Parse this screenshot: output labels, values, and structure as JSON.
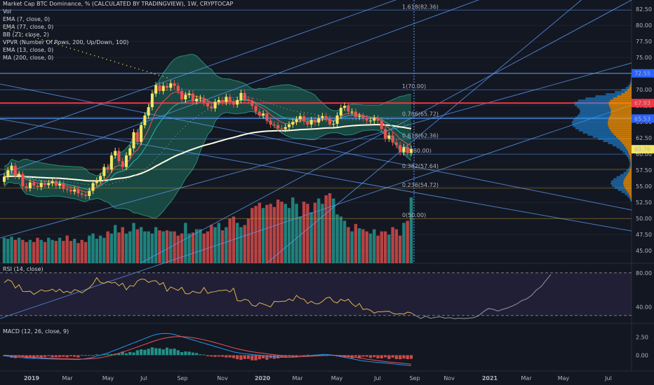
{
  "legend": {
    "title": "Market Cap BTC Dominance, % (CALCULATED BY TRADINGVIEW), 1W, CRYPTOCAP",
    "indicators": [
      "Vol",
      "EMA (7, close, 0)",
      "EMA (77, close, 0)",
      "BB (21, close, 2)",
      "VPVR (Number Of Rows, 200, Up/Down, 100)",
      "EMA (13, close, 0)",
      "MA (200, close, 0)"
    ]
  },
  "rsi_label": "RSI (14, close)",
  "macd_label": "MACD (12, 26, close, 9)",
  "colors": {
    "background": "#131722",
    "up": "#f5e663",
    "down": "#ef5350",
    "vol_up": "#26a69a",
    "vol_down": "#ef5350",
    "fib_line": "#5b9cf6",
    "red_line": "#f23645",
    "ema_white": "#fffde7",
    "ema_green": "#26a69a",
    "ema_red": "#ef5350",
    "bb_fill": "#1f6f5c",
    "vpvr_up": "#2196f3",
    "vpvr_down": "#ff9800",
    "rsi": "#e0b34a",
    "macd": "#2196f3",
    "signal": "#ef5350"
  },
  "chart_data": {
    "type": "candlestick",
    "x_ticks": [
      "2019",
      "Mar",
      "May",
      "Jul",
      "Sep",
      "Nov",
      "2020",
      "Mar",
      "May",
      "Jul",
      "Sep",
      "Nov",
      "2021",
      "Mar",
      "May",
      "Jul"
    ],
    "price_ticks": [
      "82.50",
      "80.00",
      "77.50",
      "75.00",
      "72.50",
      "70.00",
      "67.50",
      "65.00",
      "62.50",
      "60.00",
      "57.50",
      "55.00",
      "52.50",
      "50.00",
      "47.50",
      "45.00"
    ],
    "price_ylim": [
      43.5,
      83.5
    ],
    "price_badges": [
      {
        "text": "72.55",
        "value": 72.55,
        "color": "#2962ff"
      },
      {
        "text": "67.93",
        "value": 67.93,
        "color": "#f23645"
      },
      {
        "text": "65.53",
        "value": 65.53,
        "color": "#2962ff"
      },
      {
        "text": "60.76",
        "value": 60.76,
        "color": "#f5e663"
      }
    ],
    "fib_levels": [
      {
        "label": "1.618(82.36)",
        "value": 82.36
      },
      {
        "label": "1(70.00)",
        "value": 70.0
      },
      {
        "label": "0.786(65.72)",
        "value": 65.72
      },
      {
        "label": "0.618(62.36)",
        "value": 62.36
      },
      {
        "label": "0.5(60.00)",
        "value": 60.0
      },
      {
        "label": "0.382(57.64)",
        "value": 57.64
      },
      {
        "label": "0.236(54.72)",
        "value": 54.72
      },
      {
        "label": "0(50.00)",
        "value": 50.0
      }
    ],
    "closes": [
      56.5,
      57.5,
      58.2,
      56.6,
      56.9,
      55.0,
      54.7,
      55.6,
      55.1,
      54.9,
      55.5,
      55.2,
      55.5,
      55.8,
      55.1,
      55.4,
      54.6,
      54.5,
      54.2,
      54.5,
      53.9,
      53.7,
      53.5,
      54.3,
      55.5,
      55.9,
      56.6,
      58.0,
      57.6,
      59.8,
      60.5,
      58.9,
      58.0,
      59.8,
      60.9,
      63.4,
      61.9,
      64.5,
      66.0,
      67.3,
      69.4,
      70.7,
      69.8,
      70.6,
      70.3,
      71.0,
      70.6,
      69.8,
      68.5,
      69.2,
      69.4,
      68.2,
      68.6,
      68.7,
      68.0,
      67.4,
      67.1,
      68.1,
      68.4,
      68.1,
      68.9,
      68.1,
      67.7,
      68.4,
      69.5,
      68.5,
      68.3,
      67.5,
      66.6,
      66.0,
      66.3,
      65.2,
      64.6,
      64.5,
      64.0,
      63.9,
      64.2,
      64.6,
      65.0,
      65.4,
      65.9,
      65.1,
      64.6,
      65.3,
      64.9,
      65.6,
      65.9,
      65.5,
      64.6,
      64.7,
      66.0,
      67.2,
      67.5,
      66.6,
      66.6,
      65.8,
      65.9,
      65.6,
      65.2,
      65.2,
      65.6,
      65.2,
      63.9,
      62.4,
      62.9,
      61.8,
      61.4,
      60.3,
      61.1,
      60.2,
      60.8
    ],
    "volumes": [
      24,
      23,
      25,
      22,
      24,
      22,
      20,
      22,
      20,
      24,
      22,
      20,
      24,
      22,
      21,
      24,
      21,
      26,
      21,
      23,
      19,
      22,
      20,
      26,
      28,
      23,
      26,
      24,
      30,
      28,
      36,
      29,
      34,
      28,
      30,
      38,
      32,
      34,
      30,
      30,
      28,
      34,
      31,
      30,
      31,
      30,
      30,
      26,
      28,
      38,
      28,
      29,
      32,
      32,
      28,
      30,
      36,
      34,
      38,
      31,
      34,
      42,
      44,
      38,
      34,
      36,
      42,
      52,
      54,
      57,
      52,
      55,
      56,
      53,
      60,
      58,
      56,
      52,
      62,
      56,
      44,
      58,
      56,
      48,
      57,
      61,
      56,
      64,
      66,
      61,
      46,
      44,
      40,
      34,
      30,
      37,
      33,
      32,
      30,
      28,
      32,
      26,
      30,
      30,
      27,
      34,
      32,
      26,
      38,
      40,
      62
    ],
    "rsi_ticks": [
      "80.00",
      "40.00"
    ],
    "rsi_ylim": [
      24,
      88
    ],
    "rsi_values": [
      68.4,
      72.0,
      70.0,
      62.2,
      66.0,
      58.1,
      58.0,
      58.5,
      54.8,
      57.3,
      60.2,
      58.5,
      59.0,
      60.9,
      57.8,
      60.9,
      56.8,
      58.4,
      56.3,
      60.4,
      59.0,
      56.4,
      59.4,
      62.4,
      67.0,
      74.3,
      68.7,
      67.8,
      69.8,
      68.1,
      68.9,
      64.8,
      67.9,
      60.1,
      65.1,
      64.3,
      70.5,
      72.7,
      72.2,
      68.7,
      70.5,
      70.8,
      66.1,
      68.6,
      58.4,
      63.5,
      61.4,
      59.4,
      63.1,
      55.5,
      55.5,
      58.5,
      56.8,
      56.4,
      62.8,
      55.9,
      57.4,
      57.9,
      59.2,
      59.4,
      60.0,
      57.5,
      62.0,
      47.4,
      46.9,
      49.1,
      47.7,
      42.0,
      40.8,
      44.9,
      43.5,
      41.8,
      40.0,
      46.6,
      46.2,
      46.7,
      46.7,
      49.4,
      47.2,
      53.5,
      50.0,
      49.1,
      44.0,
      46.7,
      43.9,
      43.7,
      46.5,
      50.5,
      51.4,
      46.2,
      44.7,
      49.0,
      46.9,
      49.1,
      43.7,
      40.5,
      44.1,
      37.0,
      37.7,
      36.1,
      32.7,
      34.5,
      34.4,
      34.9,
      35.0,
      32.6,
      31.6,
      32.2,
      31.6,
      33.9,
      33.1
    ],
    "rsi_projection": [
      33.1,
      29.7,
      26.4,
      29.3,
      26.7,
      27.8,
      28.5,
      26.9,
      27.5,
      26.3,
      26.9,
      26.4,
      26.9,
      27.5,
      29.7,
      34.4,
      38.2,
      37.3,
      35.2,
      37.2,
      38.9,
      41.1,
      43.8,
      47.5,
      49.6,
      53.6,
      59.8,
      64.0,
      71.2,
      78.0
    ],
    "macd_ticks": [
      "2.50",
      "0.00"
    ],
    "macd_ylim": [
      -1.8,
      4.0
    ],
    "macd_hist": [
      -0.14,
      -0.17,
      -0.35,
      -0.41,
      -0.17,
      -0.18,
      -0.42,
      -0.34,
      -0.5,
      -0.24,
      -0.4,
      -0.26,
      -0.14,
      -0.3,
      -0.28,
      -0.27,
      -0.23,
      -0.31,
      -0.16,
      -0.23,
      -0.31,
      0.02,
      -0.08,
      0.01,
      -0.1,
      0.12,
      0.04,
      0.12,
      0.15,
      0.14,
      0.2,
      0.23,
      0.5,
      0.26,
      0.44,
      0.37,
      0.68,
      0.8,
      0.74,
      0.88,
      1.08,
      0.96,
      0.94,
      0.8,
      1.04,
      0.86,
      0.9,
      0.68,
      0.42,
      0.51,
      0.48,
      0.36,
      0.3,
      0.12,
      0.08,
      -0.15,
      -0.19,
      -0.24,
      -0.2,
      -0.23,
      -0.32,
      -0.32,
      -0.41,
      -0.56,
      -0.64,
      -0.53,
      -0.52,
      -0.71,
      -0.71,
      -0.57,
      -0.44,
      -0.63,
      -0.41,
      -0.5,
      -0.45,
      -0.33,
      -0.24,
      -0.13,
      -0.21,
      -0.2,
      -0.03,
      -0.17,
      0.07,
      -0.09,
      0.06,
      0.03,
      0.13,
      -0.1,
      0.03,
      -0.04,
      -0.17,
      -0.25,
      -0.33,
      -0.29,
      -0.42,
      -0.21,
      -0.37,
      -0.21,
      -0.22,
      -0.38,
      -0.28,
      -0.44,
      -0.44,
      -0.3,
      -0.53,
      -0.34,
      -0.54,
      -0.56,
      -0.46,
      -0.55,
      -0.51
    ],
    "macd_line": [
      -0.1,
      -0.15,
      -0.2,
      -0.25,
      -0.3,
      -0.35,
      -0.4,
      -0.42,
      -0.44,
      -0.46,
      -0.48,
      -0.5,
      -0.52,
      -0.53,
      -0.54,
      -0.55,
      -0.56,
      -0.57,
      -0.58,
      -0.59,
      -0.6,
      -0.55,
      -0.48,
      -0.4,
      -0.3,
      -0.15,
      0.0,
      0.15,
      0.3,
      0.5,
      0.7,
      0.9,
      1.1,
      1.3,
      1.5,
      1.7,
      1.9,
      2.1,
      2.3,
      2.5,
      2.7,
      2.85,
      2.95,
      3.0,
      3.0,
      2.95,
      2.85,
      2.7,
      2.55,
      2.4,
      2.25,
      2.1,
      1.95,
      1.8,
      1.65,
      1.5,
      1.35,
      1.2,
      1.05,
      0.9,
      0.75,
      0.6,
      0.45,
      0.35,
      0.25,
      0.2,
      0.15,
      0.1,
      0.05,
      0.0,
      -0.05,
      -0.1,
      -0.15,
      -0.2,
      -0.25,
      -0.28,
      -0.3,
      -0.3,
      -0.28,
      -0.25,
      -0.2,
      -0.15,
      -0.1,
      -0.05,
      0.0,
      0.05,
      0.1,
      0.1,
      0.05,
      0.0,
      -0.1,
      -0.2,
      -0.3,
      -0.4,
      -0.5,
      -0.6,
      -0.7,
      -0.8,
      -0.85,
      -0.9,
      -0.95,
      -1.0,
      -1.05,
      -1.1,
      -1.15,
      -1.2,
      -1.25,
      -1.3,
      -1.35,
      -1.4,
      -1.45
    ],
    "signal_line": [
      0.0,
      -0.03,
      -0.07,
      -0.11,
      -0.15,
      -0.19,
      -0.23,
      -0.27,
      -0.3,
      -0.33,
      -0.36,
      -0.39,
      -0.41,
      -0.43,
      -0.45,
      -0.47,
      -0.49,
      -0.51,
      -0.52,
      -0.53,
      -0.54,
      -0.54,
      -0.53,
      -0.51,
      -0.48,
      -0.43,
      -0.35,
      -0.26,
      -0.16,
      -0.03,
      0.11,
      0.27,
      0.43,
      0.6,
      0.77,
      0.95,
      1.13,
      1.31,
      1.49,
      1.68,
      1.86,
      2.03,
      2.18,
      2.31,
      2.41,
      2.49,
      2.54,
      2.56,
      2.56,
      2.53,
      2.48,
      2.41,
      2.33,
      2.23,
      2.12,
      2.0,
      1.87,
      1.73,
      1.59,
      1.45,
      1.3,
      1.15,
      1.01,
      0.88,
      0.76,
      0.66,
      0.56,
      0.47,
      0.39,
      0.32,
      0.25,
      0.18,
      0.12,
      0.06,
      0.0,
      -0.05,
      -0.1,
      -0.14,
      -0.17,
      -0.19,
      -0.2,
      -0.19,
      -0.17,
      -0.15,
      -0.12,
      -0.09,
      -0.06,
      -0.03,
      -0.01,
      -0.01,
      -0.03,
      -0.06,
      -0.11,
      -0.17,
      -0.24,
      -0.31,
      -0.39,
      -0.47,
      -0.55,
      -0.62,
      -0.69,
      -0.76,
      -0.82,
      -0.88,
      -0.94,
      -0.99,
      -1.04,
      -1.09,
      -1.14,
      -1.19,
      -1.24
    ]
  }
}
